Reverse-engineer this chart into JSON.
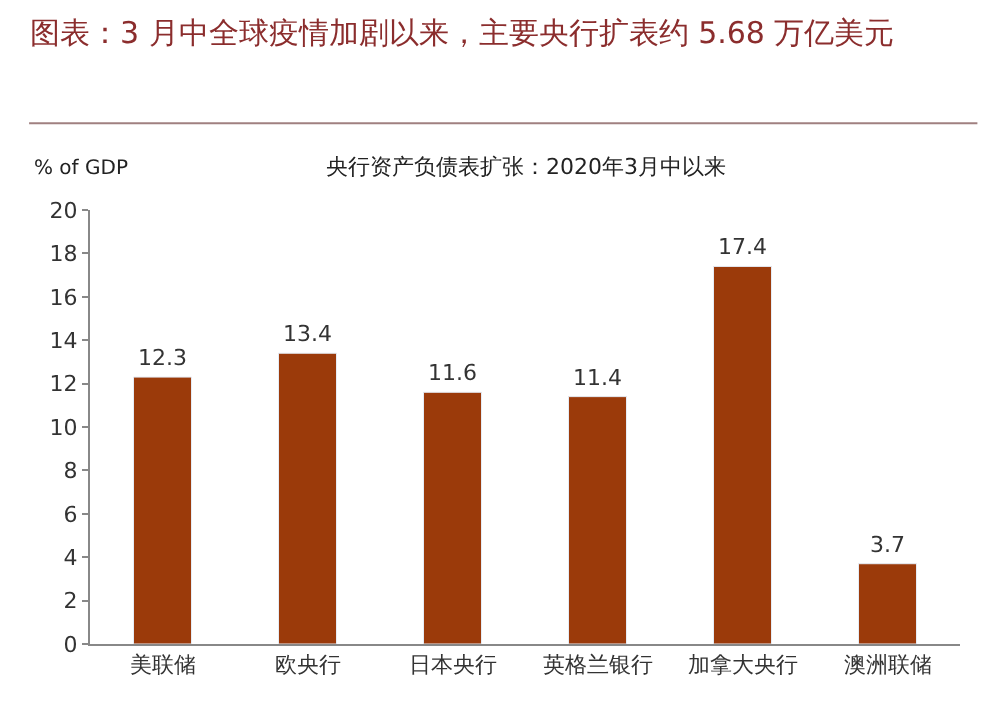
{
  "chart_data": {
    "type": "bar",
    "title": "图表：3 月中全球疫情加剧以来，主要央行扩表约 5.68 万亿美元",
    "subtitle": "央行资产负债表扩张：2020年3月中以来",
    "ylabel": "% of GDP",
    "categories": [
      "美联储",
      "欧央行",
      "日本央行",
      "英格兰银行",
      "加拿大央行",
      "澳洲联储"
    ],
    "values": [
      12.3,
      13.4,
      11.6,
      11.4,
      17.4,
      3.7
    ],
    "color": "#9b3a0a",
    "ylim": [
      0,
      20
    ],
    "yticks": [
      0,
      2,
      4,
      6,
      8,
      10,
      12,
      14,
      16,
      18,
      20
    ],
    "grid": false,
    "data_labels": true,
    "legend": false
  }
}
